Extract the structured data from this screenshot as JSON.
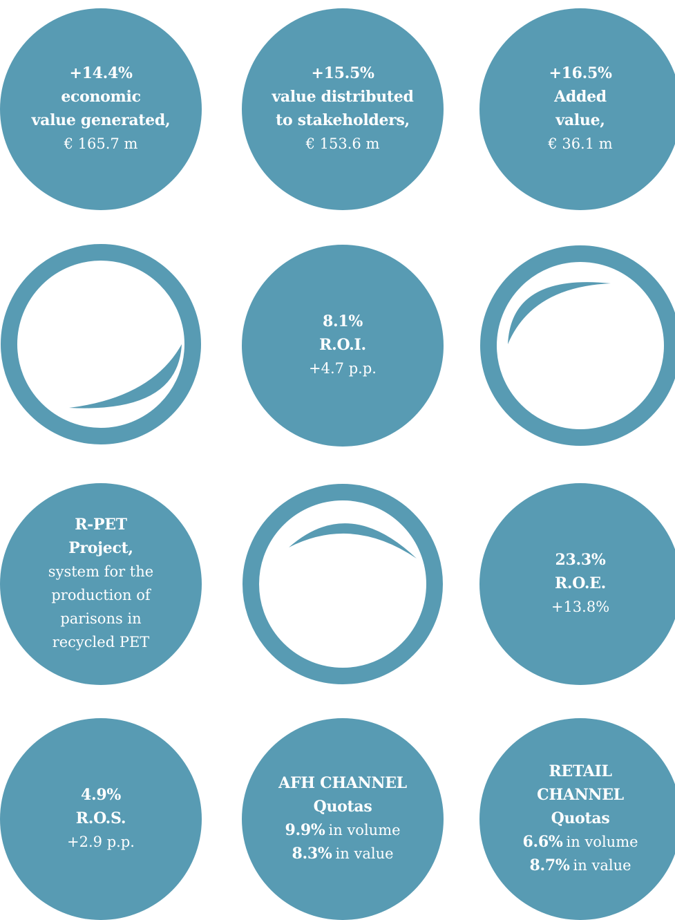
{
  "circles": [
    {
      "lines": [
        {
          "strong": "+14.4%"
        },
        {
          "strong": "economic"
        },
        {
          "strong": "value generated,"
        },
        {
          "plain": "€ 165.7 m"
        }
      ]
    },
    {
      "lines": [
        {
          "strong": "+15.5%"
        },
        {
          "strong": "value distributed"
        },
        {
          "strong": "to stakeholders,"
        },
        {
          "plain": "€ 153.6 m"
        }
      ]
    },
    {
      "lines": [
        {
          "strong": "+16.5%"
        },
        {
          "strong": "Added"
        },
        {
          "strong": "value,"
        },
        {
          "plain": "€ 36.1 m"
        }
      ]
    },
    {
      "lines": [
        {
          "strong": "8.1%"
        },
        {
          "strong": "R.O.I."
        },
        {
          "plain": "+4.7 p.p."
        }
      ]
    },
    {
      "lines": [
        {
          "strong": "R-PET"
        },
        {
          "strong": "Project,"
        },
        {
          "plain": "system for the"
        },
        {
          "plain": "production of"
        },
        {
          "plain": "parisons in"
        },
        {
          "plain": "recycled PET"
        }
      ]
    },
    {
      "lines": [
        {
          "strong": "23.3%"
        },
        {
          "strong": "R.O.E."
        },
        {
          "plain": "+13.8%"
        }
      ]
    },
    {
      "lines": [
        {
          "strong": "4.9%"
        },
        {
          "strong": "R.O.S."
        },
        {
          "plain": "+2.9 p.p."
        }
      ]
    },
    {
      "lines": [
        {
          "strong": "AFH CHANNEL"
        },
        {
          "strong": "Quotas"
        },
        {
          "strong": "9.9%",
          "plain": "in volume"
        },
        {
          "strong": "8.3%",
          "plain": "in value"
        }
      ]
    },
    {
      "lines": [
        {
          "strong": "RETAIL"
        },
        {
          "strong": "CHANNEL"
        },
        {
          "strong": "Quotas"
        },
        {
          "strong": "6.6%",
          "plain": "in volume"
        },
        {
          "strong": "8.7%",
          "plain": "in value"
        }
      ]
    }
  ]
}
